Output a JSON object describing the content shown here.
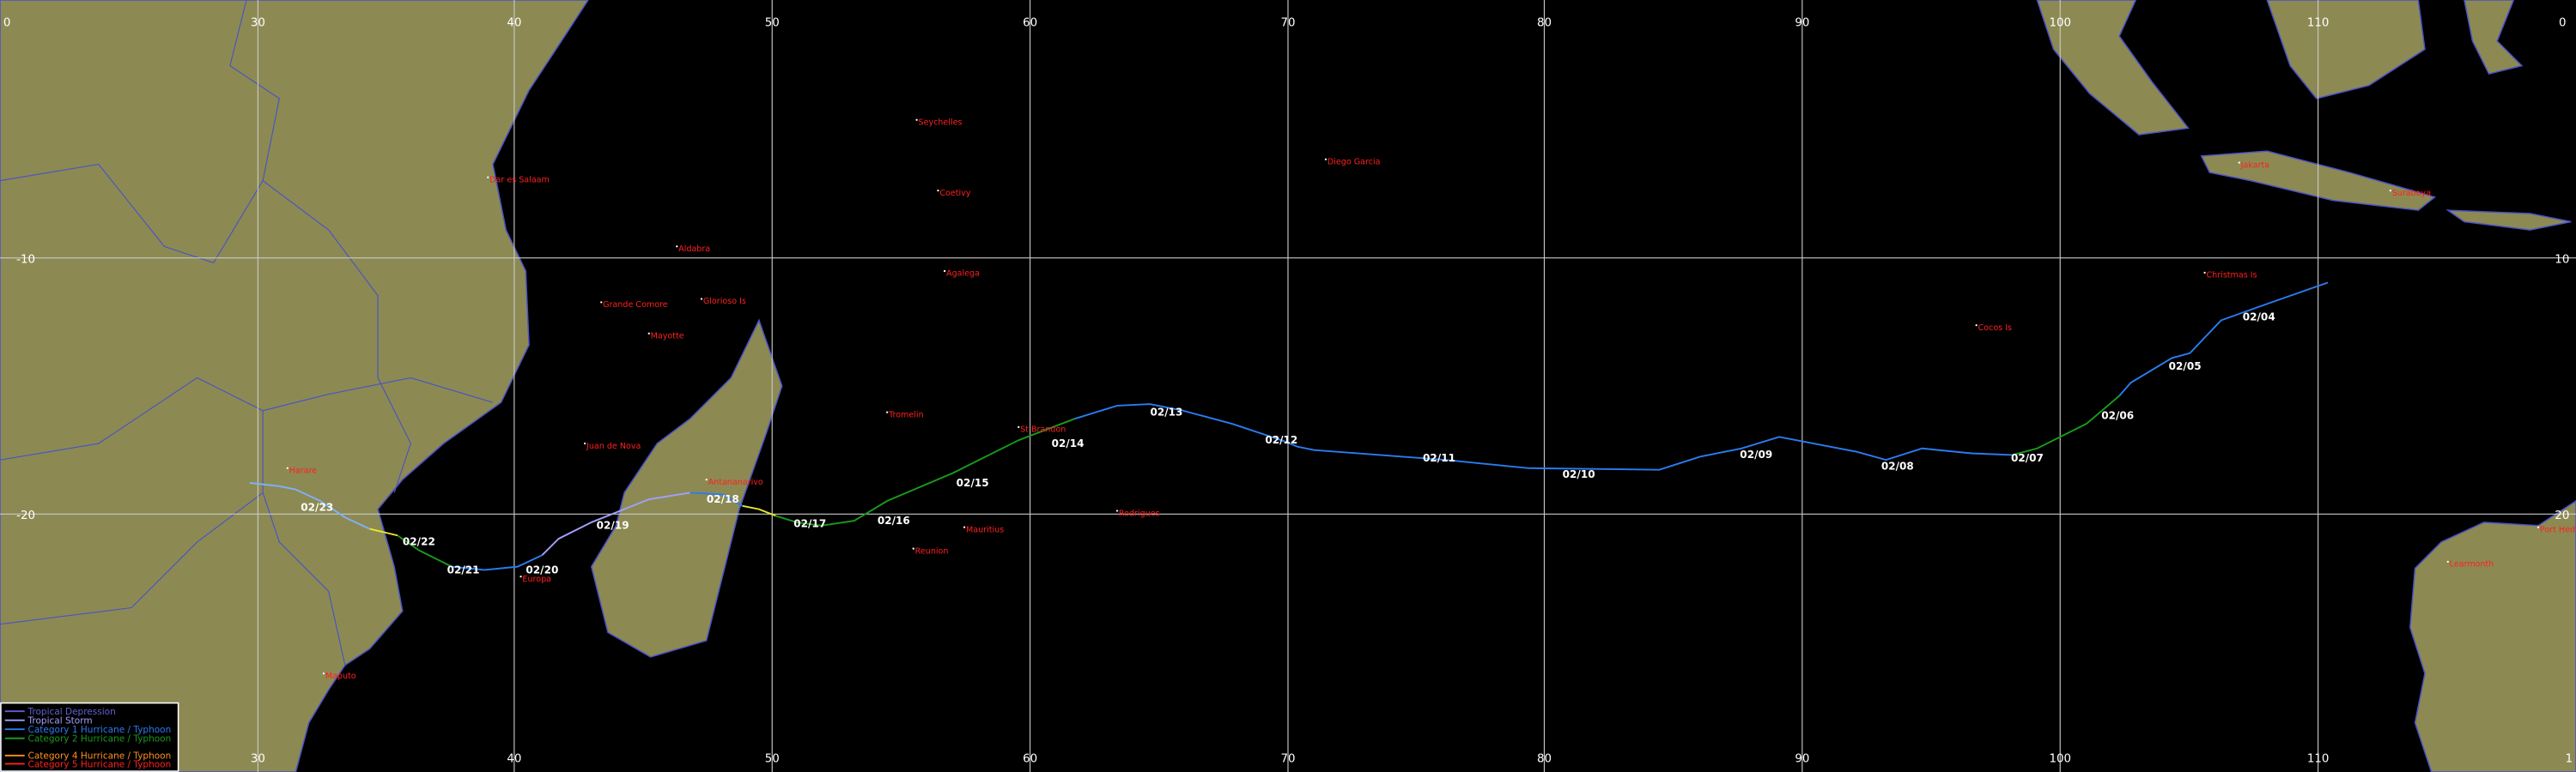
{
  "grid": {
    "top_labels": [
      "0",
      "30",
      "40",
      "50",
      "60",
      "70",
      "80",
      "90",
      "100",
      "110",
      "0"
    ],
    "bottom_labels": [
      "30",
      "40",
      "50",
      "60",
      "70",
      "80",
      "90",
      "100",
      "110",
      "1"
    ],
    "left_labels": [
      "-10",
      "-20"
    ],
    "right_labels": [
      "10",
      "20"
    ]
  },
  "places": [
    "Seychelles",
    "Dar es Salaam",
    "Coetivy",
    "Aldabra",
    "Agalega",
    "Diego Garcia",
    "Jakarta",
    "Surabaya",
    "Christmas Is",
    "Cocos Is",
    "Grande Comore",
    "Glorioso Is",
    "Mayotte",
    "Tromelin",
    "St Brandon",
    "Juan de Nova",
    "Antananarivo",
    "Harare",
    "Reunion",
    "Mauritius",
    "Rodrigues",
    "Europa",
    "Maputo",
    "Learmonth",
    "Port Hedland"
  ],
  "track_dates": [
    "02/04",
    "02/05",
    "02/06",
    "02/07",
    "02/08",
    "02/09",
    "02/10",
    "02/11",
    "02/12",
    "02/13",
    "02/14",
    "02/15",
    "02/16",
    "02/17",
    "02/18",
    "02/19",
    "02/20",
    "02/21",
    "02/22",
    "02/23"
  ],
  "legend": [
    "Tropical Depression",
    "Tropical Storm",
    "Category 1 Hurricane / Typhoon",
    "Category 2 Hurricane / Typhoon",
    "Category 4 Hurricane / Typhoon",
    "Category 5 Hurricane / Typhoon"
  ]
}
